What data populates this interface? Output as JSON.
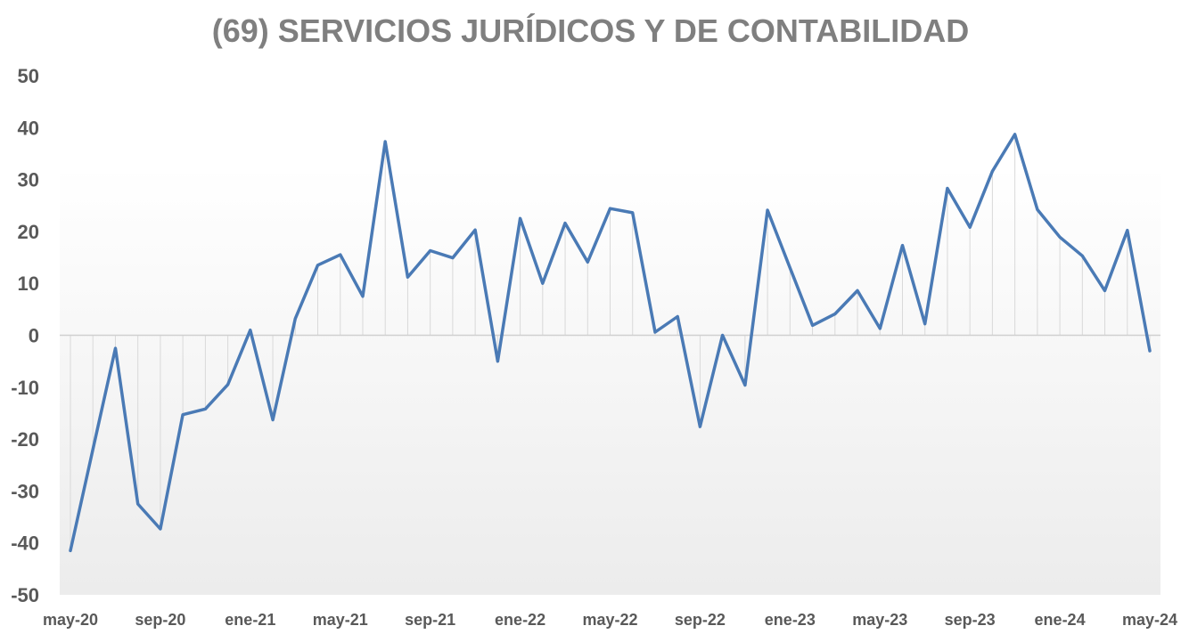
{
  "chart_data": {
    "type": "line",
    "title": "(69) SERVICIOS JURÍDICOS Y DE CONTABILIDAD",
    "xlabel": "",
    "ylabel": "",
    "ylim": [
      -50,
      50
    ],
    "yticks": [
      50,
      40,
      30,
      20,
      10,
      0,
      -10,
      -20,
      -30,
      -40,
      -50
    ],
    "xtick_labels": [
      "may-20",
      "sep-20",
      "ene-21",
      "may-21",
      "sep-21",
      "ene-22",
      "may-22",
      "sep-22",
      "ene-23",
      "may-23",
      "sep-23",
      "ene-24",
      "may-24"
    ],
    "xtick_every": 4,
    "line_color": "#4a7ab5",
    "drop_line_color": "#d9d9d9",
    "series": [
      {
        "name": "(69) Servicios jurídicos y de contabilidad",
        "values": [
          -41.5,
          -22,
          -2.5,
          -32.5,
          -37.3,
          -15.3,
          -14.2,
          -9.5,
          1,
          -16.3,
          3.2,
          13.5,
          15.5,
          7.5,
          37.3,
          11.2,
          16.3,
          14.9,
          20.3,
          -5,
          22.5,
          10,
          21.6,
          14.1,
          24.4,
          23.6,
          0.6,
          3.6,
          -17.6,
          0,
          -9.6,
          24.1,
          13,
          1.9,
          4.1,
          8.6,
          1.3,
          17.3,
          2.2,
          28.3,
          20.8,
          31.6,
          38.7,
          24.2,
          18.9,
          15.3,
          8.6,
          20.2,
          -3
        ]
      }
    ]
  }
}
